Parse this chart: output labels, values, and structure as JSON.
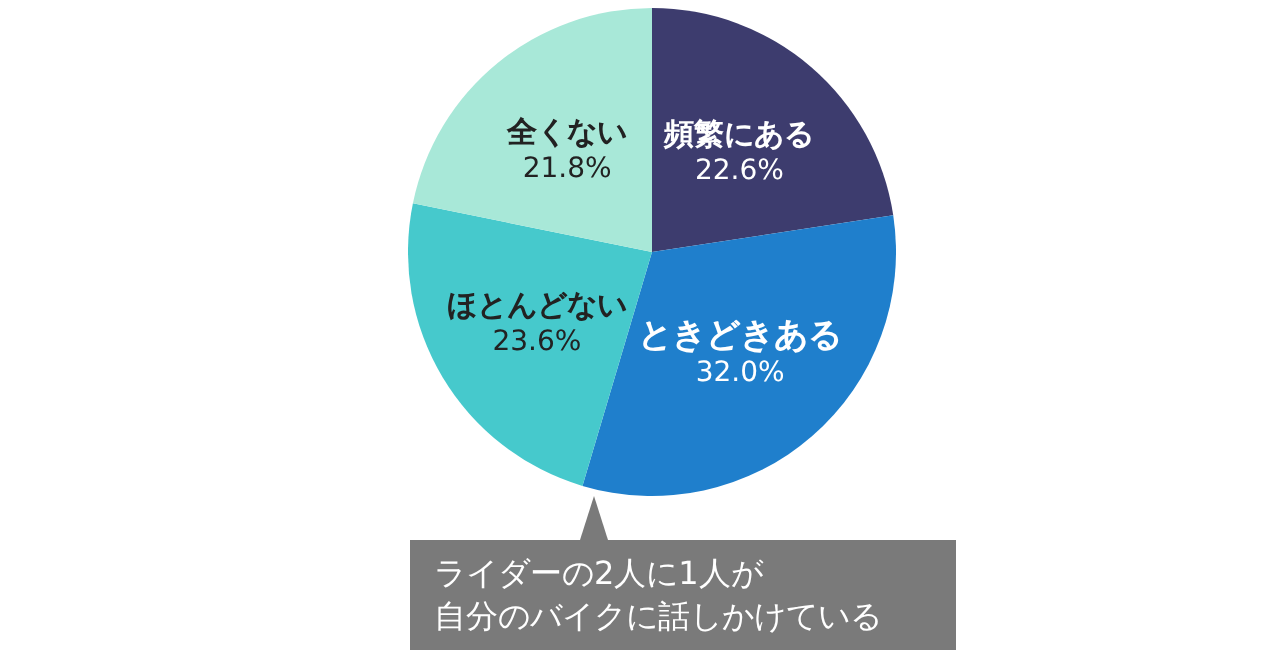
{
  "chart_data": {
    "type": "pie",
    "categories": [
      "頻繁にある",
      "ときどきある",
      "ほとんどない",
      "全くない"
    ],
    "values": [
      22.6,
      32.0,
      23.6,
      21.8
    ],
    "value_labels": [
      "22.6%",
      "32.0%",
      "23.6%",
      "21.8%"
    ],
    "colors": [
      "#3d3c6e",
      "#1f7fcc",
      "#46c9cc",
      "#a8e8d8"
    ],
    "annotations": [
      "ライダーの2人に1人が",
      "自分のバイクに話しかけている"
    ]
  }
}
